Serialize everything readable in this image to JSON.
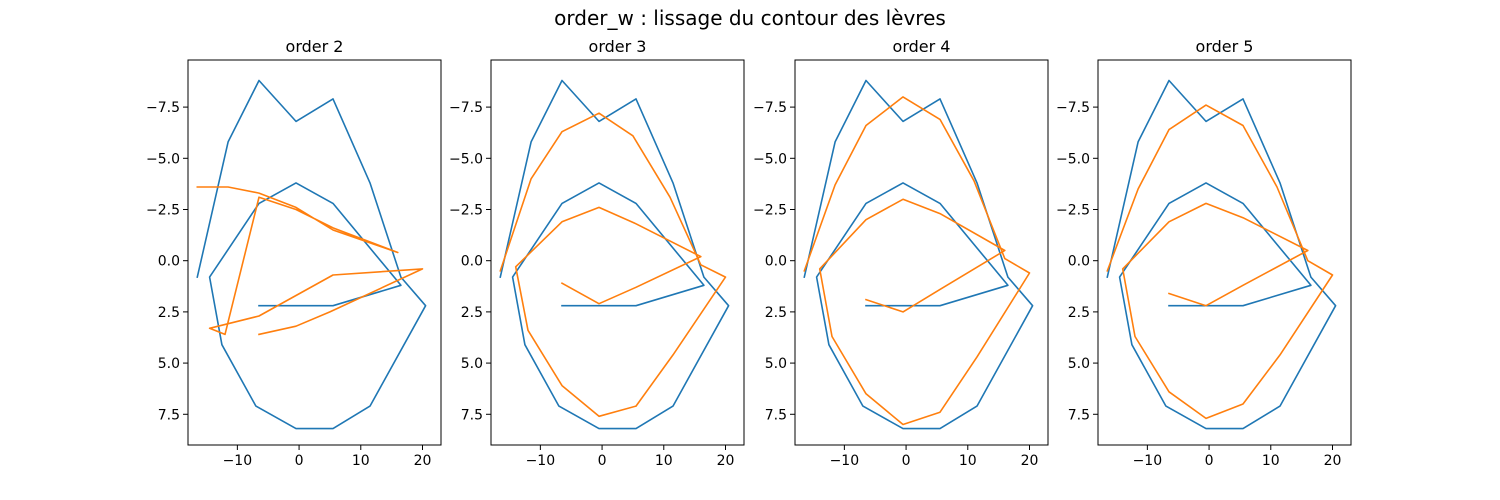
{
  "suptitle": "order_w : lissage du contour des lèvres",
  "chart_data": [
    {
      "type": "line",
      "title": "order 2",
      "xlabel": "",
      "ylabel": "",
      "xlim": [
        -18,
        23
      ],
      "ylim": [
        9,
        -9.8
      ],
      "yaxis_inverted": true,
      "xticks": [
        -10,
        0,
        10,
        20
      ],
      "xtick_labels": [
        "−10",
        "0",
        "10",
        "20"
      ],
      "yticks": [
        -7.5,
        -5.0,
        -2.5,
        0.0,
        2.5,
        5.0,
        7.5
      ],
      "ytick_labels": [
        "−7.5",
        "−5.0",
        "−2.5",
        "0.0",
        "2.5",
        "5.0",
        "7.5"
      ],
      "grid": false,
      "series": [
        {
          "color": "#1f77b4",
          "x": [
            -16.5,
            -11.5,
            -6.5,
            -0.5,
            5.5,
            11.5,
            16.5,
            20.5,
            11.5,
            5.5,
            -0.5,
            -7,
            -12.5,
            -14.5,
            -6.5,
            -0.5,
            5.5,
            16.5,
            5.5,
            -6.5
          ],
          "y": [
            0.8,
            -5.8,
            -8.8,
            -6.8,
            -7.9,
            -3.8,
            0.8,
            2.2,
            7.1,
            8.2,
            8.2,
            7.1,
            4.1,
            0.8,
            -2.8,
            -3.8,
            -2.8,
            1.2,
            2.2,
            2.2
          ]
        },
        {
          "color": "#ff7f0e",
          "x": [
            -16.5,
            -11.5,
            -6.5,
            -0.5,
            5.5,
            16,
            5.5,
            -0.5,
            -6.5,
            -12,
            -14.5,
            -6.5,
            -0.5,
            5.5,
            20,
            5,
            -0.5,
            -6.5
          ],
          "y": [
            -3.6,
            -3.6,
            -3.3,
            -2.6,
            -1.5,
            -0.4,
            -1.6,
            -2.5,
            -3.1,
            3.6,
            3.3,
            2.7,
            1.7,
            0.7,
            0.4,
            2.5,
            3.2,
            3.6
          ]
        }
      ]
    },
    {
      "type": "line",
      "title": "order 3",
      "xlabel": "",
      "ylabel": "",
      "xlim": [
        -18,
        23
      ],
      "ylim": [
        9,
        -9.8
      ],
      "yaxis_inverted": true,
      "xticks": [
        -10,
        0,
        10,
        20
      ],
      "xtick_labels": [
        "−10",
        "0",
        "10",
        "20"
      ],
      "yticks": [
        -7.5,
        -5.0,
        -2.5,
        0.0,
        2.5,
        5.0,
        7.5
      ],
      "ytick_labels": [
        "−7.5",
        "−5.0",
        "−2.5",
        "0.0",
        "2.5",
        "5.0",
        "7.5"
      ],
      "grid": false,
      "series": [
        {
          "color": "#1f77b4",
          "x": [
            -16.5,
            -11.5,
            -6.5,
            -0.5,
            5.5,
            11.5,
            16.5,
            20.5,
            11.5,
            5.5,
            -0.5,
            -7,
            -12.5,
            -14.5,
            -6.5,
            -0.5,
            5.5,
            16.5,
            5.5,
            -6.5
          ],
          "y": [
            0.8,
            -5.8,
            -8.8,
            -6.8,
            -7.9,
            -3.8,
            0.8,
            2.2,
            7.1,
            8.2,
            8.2,
            7.1,
            4.1,
            0.8,
            -2.8,
            -3.8,
            -2.8,
            1.2,
            2.2,
            2.2
          ]
        },
        {
          "color": "#ff7f0e",
          "x": [
            -16.5,
            -11.5,
            -6.5,
            -0.5,
            5,
            11,
            16,
            20,
            11.5,
            5.5,
            -0.5,
            -6.5,
            -12,
            -14,
            -6.5,
            -0.5,
            5.5,
            16,
            5.5,
            -0.5,
            -6.5
          ],
          "y": [
            0.5,
            -4,
            -6.3,
            -7.2,
            -6.1,
            -3.1,
            0.2,
            0.8,
            4.6,
            7.1,
            7.6,
            6.1,
            3.4,
            0.3,
            -1.9,
            -2.6,
            -1.8,
            -0.2,
            1.3,
            2.1,
            1.1
          ]
        }
      ]
    },
    {
      "type": "line",
      "title": "order 4",
      "xlabel": "",
      "ylabel": "",
      "xlim": [
        -18,
        23
      ],
      "ylim": [
        9,
        -9.8
      ],
      "yaxis_inverted": true,
      "xticks": [
        -10,
        0,
        10,
        20
      ],
      "xtick_labels": [
        "−10",
        "0",
        "10",
        "20"
      ],
      "yticks": [
        -7.5,
        -5.0,
        -2.5,
        0.0,
        2.5,
        5.0,
        7.5
      ],
      "ytick_labels": [
        "−7.5",
        "−5.0",
        "−2.5",
        "0.0",
        "2.5",
        "5.0",
        "7.5"
      ],
      "grid": false,
      "series": [
        {
          "color": "#1f77b4",
          "x": [
            -16.5,
            -11.5,
            -6.5,
            -0.5,
            5.5,
            11.5,
            16.5,
            20.5,
            11.5,
            5.5,
            -0.5,
            -7,
            -12.5,
            -14.5,
            -6.5,
            -0.5,
            5.5,
            16.5,
            5.5,
            -6.5
          ],
          "y": [
            0.8,
            -5.8,
            -8.8,
            -6.8,
            -7.9,
            -3.8,
            0.8,
            2.2,
            7.1,
            8.2,
            8.2,
            7.1,
            4.1,
            0.8,
            -2.8,
            -3.8,
            -2.8,
            1.2,
            2.2,
            2.2
          ]
        },
        {
          "color": "#ff7f0e",
          "x": [
            -16.5,
            -11.5,
            -6.5,
            -0.5,
            5.5,
            11,
            16,
            20,
            11.5,
            5.5,
            -0.5,
            -6.5,
            -12,
            -14,
            -6.5,
            -0.5,
            5.5,
            16,
            5.5,
            -0.5,
            -6.5
          ],
          "y": [
            0.5,
            -3.7,
            -6.6,
            -8,
            -6.9,
            -3.9,
            -0.1,
            0.6,
            4.7,
            7.4,
            8,
            6.5,
            3.7,
            0.4,
            -2,
            -3,
            -2.3,
            -0.5,
            1.4,
            2.5,
            1.9
          ]
        }
      ]
    },
    {
      "type": "line",
      "title": "order 5",
      "xlabel": "",
      "ylabel": "",
      "xlim": [
        -18,
        23
      ],
      "ylim": [
        9,
        -9.8
      ],
      "yaxis_inverted": true,
      "xticks": [
        -10,
        0,
        10,
        20
      ],
      "xtick_labels": [
        "−10",
        "0",
        "10",
        "20"
      ],
      "yticks": [
        -7.5,
        -5.0,
        -2.5,
        0.0,
        2.5,
        5.0,
        7.5
      ],
      "ytick_labels": [
        "−7.5",
        "−5.0",
        "−2.5",
        "0.0",
        "2.5",
        "5.0",
        "7.5"
      ],
      "grid": false,
      "series": [
        {
          "color": "#1f77b4",
          "x": [
            -16.5,
            -11.5,
            -6.5,
            -0.5,
            5.5,
            11.5,
            16.5,
            20.5,
            11.5,
            5.5,
            -0.5,
            -7,
            -12.5,
            -14.5,
            -6.5,
            -0.5,
            5.5,
            16.5,
            5.5,
            -6.5
          ],
          "y": [
            0.8,
            -5.8,
            -8.8,
            -6.8,
            -7.9,
            -3.8,
            0.8,
            2.2,
            7.1,
            8.2,
            8.2,
            7.1,
            4.1,
            0.8,
            -2.8,
            -3.8,
            -2.8,
            1.2,
            2.2,
            2.2
          ]
        },
        {
          "color": "#ff7f0e",
          "x": [
            -16.5,
            -11.5,
            -6.5,
            -0.5,
            5.5,
            11,
            16,
            20,
            11.5,
            5.5,
            -0.5,
            -6.5,
            -12,
            -14,
            -6.5,
            -0.5,
            5.5,
            16,
            5.5,
            -0.5,
            -6.5
          ],
          "y": [
            0.5,
            -3.5,
            -6.4,
            -7.6,
            -6.6,
            -3.6,
            0,
            0.7,
            4.6,
            7,
            7.7,
            6.4,
            3.7,
            0.4,
            -1.9,
            -2.8,
            -2.1,
            -0.5,
            1.2,
            2.2,
            1.6
          ]
        }
      ]
    }
  ]
}
